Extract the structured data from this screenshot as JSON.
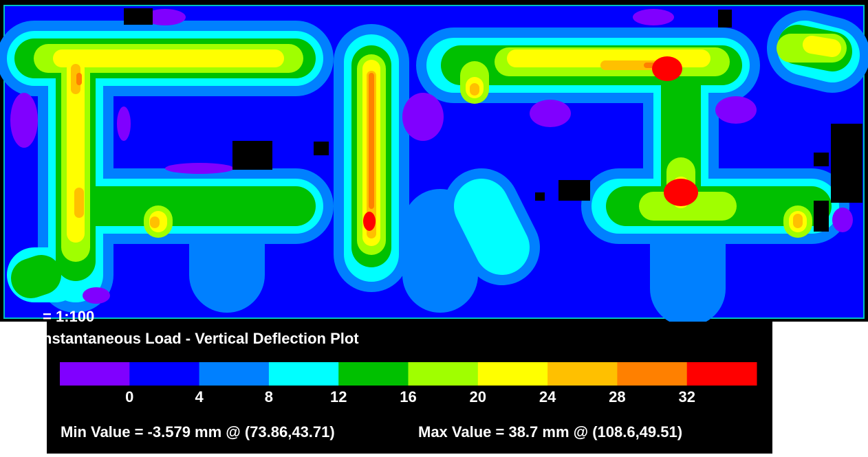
{
  "scale_label": "= 1:100",
  "title": "nstantaneous Load - Vertical Deflection Plot",
  "legend": {
    "colors": [
      "#8000ff",
      "#0000ff",
      "#0080ff",
      "#00ffff",
      "#00c000",
      "#a0ff00",
      "#ffff00",
      "#ffc000",
      "#ff8000",
      "#ff0000"
    ],
    "ticks": [
      0,
      4,
      8,
      12,
      16,
      20,
      24,
      28,
      32
    ]
  },
  "min_text": "Min Value = -3.579 mm @ (73.86,43.71)",
  "max_text": "Max Value = 38.7 mm @ (108.6,49.51)"
}
